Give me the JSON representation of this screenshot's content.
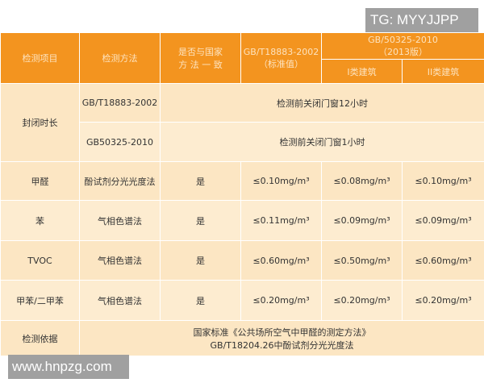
{
  "watermark_top": "TG: MYYJJPP",
  "watermark_bottom": "www.hnpzg.com",
  "header": {
    "item": "检测项目",
    "method": "检测方法",
    "consistent": "是否与国家方 法 一 致",
    "std1": "GB/T18883-2002",
    "std1_sub": "（标准值）",
    "std2": "GB/50325-2010",
    "std2_sub": "（2013版）",
    "class1": "I类建筑",
    "class2": "II类建筑"
  },
  "closing": {
    "label": "封闭时长",
    "rows": [
      {
        "std": "GB/T18883-2002",
        "value": "检测前关闭门窗12小时"
      },
      {
        "std": "GB50325-2010",
        "value": "检测前关闭门窗1小时"
      }
    ]
  },
  "rows": [
    {
      "item": "甲醛",
      "method": "酚试剂分光光度法",
      "consistent": "是",
      "std1": "≤0.10mg/m³",
      "c1": "≤0.08mg/m³",
      "c2": "≤0.10mg/m³"
    },
    {
      "item": "苯",
      "method": "气相色谱法",
      "consistent": "是",
      "std1": "≤0.11mg/m³",
      "c1": "≤0.09mg/m³",
      "c2": "≤0.09mg/m³"
    },
    {
      "item": "TVOC",
      "method": "气相色谱法",
      "consistent": "是",
      "std1": "≤0.60mg/m³",
      "c1": "≤0.50mg/m³",
      "c2": "≤0.60mg/m³"
    },
    {
      "item": "甲苯/二甲苯",
      "method": "气相色谱法",
      "consistent": "是",
      "std1": "≤0.20mg/m³",
      "c1": "≤0.20mg/m³",
      "c2": "≤0.20mg/m³"
    }
  ],
  "basis": {
    "label": "检测依据",
    "line1": "国家标准《公共场所空气中甲醛的测定方法》",
    "line2": "GB/T18204.26中酚试剂分光光度法"
  }
}
